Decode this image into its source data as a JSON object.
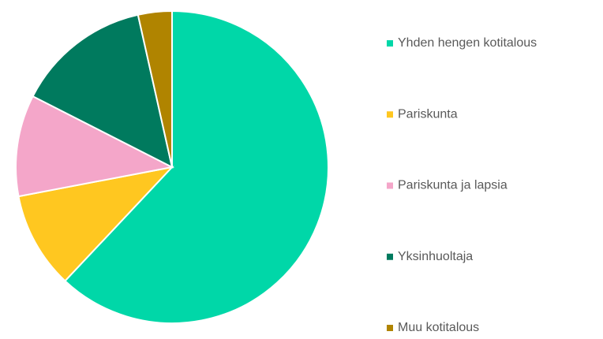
{
  "chart_data": {
    "type": "pie",
    "categories": [
      "Yhden hengen kotitalous",
      "Pariskunta",
      "Pariskunta ja lapsia",
      "Yksinhuoltaja",
      "Muu kotitalous"
    ],
    "values": [
      62,
      10,
      10.5,
      14,
      3.5
    ],
    "colors": [
      "#00d7a8",
      "#ffc720",
      "#f4a6c9",
      "#007a5e",
      "#b08400"
    ],
    "legend": "right"
  }
}
